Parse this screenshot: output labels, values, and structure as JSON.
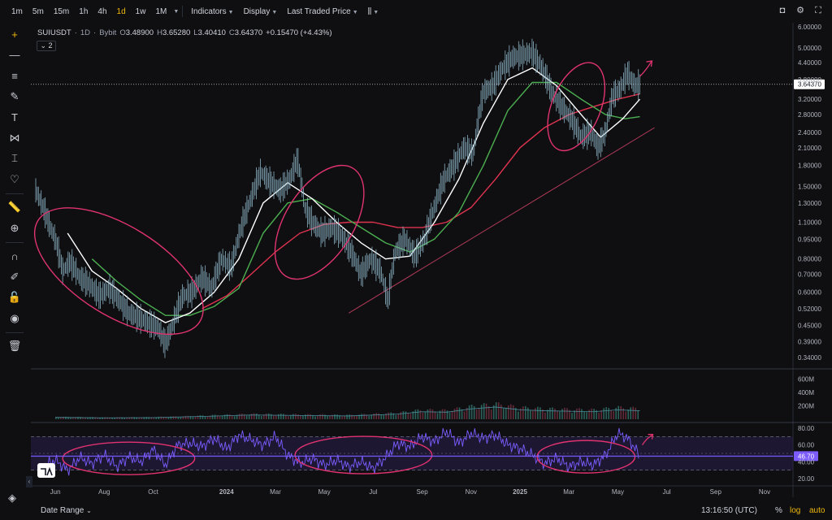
{
  "toolbar": {
    "timeframes": [
      "1m",
      "5m",
      "15m",
      "1h",
      "4h",
      "1d",
      "1w",
      "1M"
    ],
    "active_timeframe": "1d",
    "menus": [
      "Indicators",
      "Display",
      "Last Traded Price"
    ],
    "icons": [
      "camera-icon",
      "settings-icon",
      "fullscreen-icon"
    ]
  },
  "sidebar": {
    "tools": [
      "crosshair-icon",
      "horizontal-line-icon",
      "parallel-channel-icon",
      "brush-icon",
      "text-icon",
      "pattern-icon",
      "measure-icon",
      "heart-icon",
      "ruler-icon",
      "zoom-in-icon",
      "magnet-icon",
      "draw-lock-icon",
      "lock-icon",
      "eye-icon",
      "trash-icon"
    ]
  },
  "legend": {
    "symbol": "SUIUSDT",
    "interval": "1D",
    "exchange": "Bybit",
    "open_label": "O",
    "open": "3.48900",
    "high_label": "H",
    "high": "3.65280",
    "low_label": "L",
    "low": "3.40410",
    "close_label": "C",
    "close": "3.64370",
    "change": "+0.15470 (+4.43%)",
    "indicator_count": "2"
  },
  "colors": {
    "background": "#0f0f12",
    "candle": "#8fb8c9",
    "ma_fast": "#ffffff",
    "ma_mid": "#4caf50",
    "ma_slow": "#e0334f",
    "annotation": "#e0336f",
    "trendline": "#b33a5a",
    "volume": "#3a3f4b",
    "rsi": "#7c5cff",
    "rsi_band": "#2a1f4d",
    "accent": "#f0b90b"
  },
  "chart_data": {
    "type": "line",
    "symbol": "SUIUSDT",
    "interval": "1D",
    "price_scale": "log",
    "price_ticks": [
      "6.00000",
      "5.00000",
      "4.40000",
      "3.80000",
      "3.20000",
      "2.80000",
      "2.40000",
      "2.10000",
      "1.80000",
      "1.50000",
      "1.30000",
      "1.10000",
      "0.95000",
      "0.80000",
      "0.70000",
      "0.60000",
      "0.52000",
      "0.45000",
      "0.39000",
      "0.34000"
    ],
    "price_tick_values": [
      6.0,
      5.0,
      4.4,
      3.8,
      3.2,
      2.8,
      2.4,
      2.1,
      1.8,
      1.5,
      1.3,
      1.1,
      0.95,
      0.8,
      0.7,
      0.6,
      0.52,
      0.45,
      0.39,
      0.34
    ],
    "last_price": "3.64370",
    "last_price_value": 3.6437,
    "time_ticks": [
      "Jun",
      "Aug",
      "Oct",
      "2024",
      "Mar",
      "May",
      "Jul",
      "Sep",
      "Nov",
      "2025",
      "Mar",
      "May",
      "Jul",
      "Sep",
      "Nov"
    ],
    "time_tick_months": [
      1,
      3,
      5,
      8,
      10,
      12,
      14,
      16,
      18,
      20,
      22,
      24,
      26,
      28,
      30
    ],
    "price_series": [
      {
        "m": 0.2,
        "v": 1.45
      },
      {
        "m": 0.5,
        "v": 1.25
      },
      {
        "m": 0.8,
        "v": 1.05
      },
      {
        "m": 1.0,
        "v": 0.95
      },
      {
        "m": 1.3,
        "v": 0.72
      },
      {
        "m": 1.6,
        "v": 0.78
      },
      {
        "m": 2.0,
        "v": 0.68
      },
      {
        "m": 2.4,
        "v": 0.64
      },
      {
        "m": 2.8,
        "v": 0.58
      },
      {
        "m": 3.2,
        "v": 0.62
      },
      {
        "m": 3.6,
        "v": 0.56
      },
      {
        "m": 4.0,
        "v": 0.5
      },
      {
        "m": 4.4,
        "v": 0.48
      },
      {
        "m": 4.8,
        "v": 0.46
      },
      {
        "m": 5.2,
        "v": 0.44
      },
      {
        "m": 5.5,
        "v": 0.38
      },
      {
        "m": 5.8,
        "v": 0.45
      },
      {
        "m": 6.2,
        "v": 0.58
      },
      {
        "m": 6.6,
        "v": 0.6
      },
      {
        "m": 7.0,
        "v": 0.68
      },
      {
        "m": 7.4,
        "v": 0.62
      },
      {
        "m": 7.8,
        "v": 0.8
      },
      {
        "m": 8.2,
        "v": 0.74
      },
      {
        "m": 8.6,
        "v": 1.05
      },
      {
        "m": 9.0,
        "v": 1.35
      },
      {
        "m": 9.4,
        "v": 1.7
      },
      {
        "m": 9.8,
        "v": 1.55
      },
      {
        "m": 10.2,
        "v": 1.45
      },
      {
        "m": 10.6,
        "v": 1.6
      },
      {
        "m": 10.9,
        "v": 1.9
      },
      {
        "m": 11.2,
        "v": 1.25
      },
      {
        "m": 11.5,
        "v": 1.1
      },
      {
        "m": 11.9,
        "v": 1.0
      },
      {
        "m": 12.3,
        "v": 1.05
      },
      {
        "m": 12.7,
        "v": 0.98
      },
      {
        "m": 13.1,
        "v": 0.85
      },
      {
        "m": 13.5,
        "v": 0.7
      },
      {
        "m": 13.9,
        "v": 0.8
      },
      {
        "m": 14.3,
        "v": 0.72
      },
      {
        "m": 14.6,
        "v": 0.55
      },
      {
        "m": 14.9,
        "v": 0.85
      },
      {
        "m": 15.3,
        "v": 0.95
      },
      {
        "m": 15.7,
        "v": 0.82
      },
      {
        "m": 16.1,
        "v": 0.95
      },
      {
        "m": 16.5,
        "v": 1.25
      },
      {
        "m": 16.9,
        "v": 1.6
      },
      {
        "m": 17.3,
        "v": 1.8
      },
      {
        "m": 17.7,
        "v": 2.1
      },
      {
        "m": 18.1,
        "v": 2.0
      },
      {
        "m": 18.5,
        "v": 3.4
      },
      {
        "m": 18.9,
        "v": 3.6
      },
      {
        "m": 19.3,
        "v": 4.2
      },
      {
        "m": 19.7,
        "v": 4.6
      },
      {
        "m": 20.1,
        "v": 4.7
      },
      {
        "m": 20.5,
        "v": 4.8
      },
      {
        "m": 20.9,
        "v": 4.2
      },
      {
        "m": 21.3,
        "v": 3.4
      },
      {
        "m": 21.7,
        "v": 3.0
      },
      {
        "m": 22.1,
        "v": 2.7
      },
      {
        "m": 22.5,
        "v": 2.3
      },
      {
        "m": 22.9,
        "v": 2.4
      },
      {
        "m": 23.2,
        "v": 2.1
      },
      {
        "m": 23.5,
        "v": 2.4
      },
      {
        "m": 23.8,
        "v": 3.3
      },
      {
        "m": 24.1,
        "v": 3.5
      },
      {
        "m": 24.4,
        "v": 4.0
      },
      {
        "m": 24.7,
        "v": 3.6
      },
      {
        "m": 24.9,
        "v": 3.64
      }
    ],
    "ma_fast": [
      {
        "m": 1.5,
        "v": 1.0
      },
      {
        "m": 2.5,
        "v": 0.72
      },
      {
        "m": 3.5,
        "v": 0.62
      },
      {
        "m": 4.5,
        "v": 0.52
      },
      {
        "m": 5.5,
        "v": 0.46
      },
      {
        "m": 6.5,
        "v": 0.5
      },
      {
        "m": 7.5,
        "v": 0.6
      },
      {
        "m": 8.5,
        "v": 0.8
      },
      {
        "m": 9.5,
        "v": 1.3
      },
      {
        "m": 10.5,
        "v": 1.55
      },
      {
        "m": 11.5,
        "v": 1.35
      },
      {
        "m": 12.5,
        "v": 1.1
      },
      {
        "m": 13.5,
        "v": 0.92
      },
      {
        "m": 14.5,
        "v": 0.8
      },
      {
        "m": 15.5,
        "v": 0.82
      },
      {
        "m": 16.5,
        "v": 1.1
      },
      {
        "m": 17.5,
        "v": 1.6
      },
      {
        "m": 18.5,
        "v": 2.6
      },
      {
        "m": 19.5,
        "v": 3.8
      },
      {
        "m": 20.5,
        "v": 4.2
      },
      {
        "m": 21.5,
        "v": 3.6
      },
      {
        "m": 22.5,
        "v": 2.8
      },
      {
        "m": 23.3,
        "v": 2.3
      },
      {
        "m": 24.2,
        "v": 2.7
      },
      {
        "m": 24.9,
        "v": 3.2
      }
    ],
    "ma_mid": [
      {
        "m": 2.5,
        "v": 0.8
      },
      {
        "m": 3.5,
        "v": 0.66
      },
      {
        "m": 4.5,
        "v": 0.56
      },
      {
        "m": 5.5,
        "v": 0.49
      },
      {
        "m": 6.5,
        "v": 0.49
      },
      {
        "m": 7.5,
        "v": 0.53
      },
      {
        "m": 8.5,
        "v": 0.62
      },
      {
        "m": 9.5,
        "v": 1.0
      },
      {
        "m": 10.5,
        "v": 1.3
      },
      {
        "m": 11.5,
        "v": 1.35
      },
      {
        "m": 12.5,
        "v": 1.2
      },
      {
        "m": 13.5,
        "v": 1.05
      },
      {
        "m": 14.5,
        "v": 0.92
      },
      {
        "m": 15.5,
        "v": 0.85
      },
      {
        "m": 16.5,
        "v": 0.95
      },
      {
        "m": 17.5,
        "v": 1.2
      },
      {
        "m": 18.5,
        "v": 1.8
      },
      {
        "m": 19.5,
        "v": 2.9
      },
      {
        "m": 20.5,
        "v": 3.7
      },
      {
        "m": 21.5,
        "v": 3.7
      },
      {
        "m": 22.5,
        "v": 3.2
      },
      {
        "m": 23.5,
        "v": 2.8
      },
      {
        "m": 24.3,
        "v": 2.7
      },
      {
        "m": 24.9,
        "v": 2.75
      }
    ],
    "ma_slow": [
      {
        "m": 7.0,
        "v": 0.52
      },
      {
        "m": 8.0,
        "v": 0.58
      },
      {
        "m": 9.0,
        "v": 0.7
      },
      {
        "m": 10.0,
        "v": 0.85
      },
      {
        "m": 11.0,
        "v": 1.0
      },
      {
        "m": 12.0,
        "v": 1.08
      },
      {
        "m": 13.0,
        "v": 1.1
      },
      {
        "m": 14.0,
        "v": 1.1
      },
      {
        "m": 15.0,
        "v": 1.05
      },
      {
        "m": 16.0,
        "v": 1.05
      },
      {
        "m": 17.0,
        "v": 1.1
      },
      {
        "m": 18.0,
        "v": 1.25
      },
      {
        "m": 19.0,
        "v": 1.6
      },
      {
        "m": 20.0,
        "v": 2.1
      },
      {
        "m": 21.0,
        "v": 2.5
      },
      {
        "m": 22.0,
        "v": 2.8
      },
      {
        "m": 23.0,
        "v": 3.0
      },
      {
        "m": 24.0,
        "v": 3.2
      },
      {
        "m": 24.9,
        "v": 3.35
      }
    ],
    "trendline": [
      {
        "m": 13.0,
        "v": 0.5
      },
      {
        "m": 25.5,
        "v": 2.5
      }
    ],
    "volume": {
      "ticks": [
        "600M",
        "400M",
        "200M"
      ],
      "tick_values": [
        600,
        400,
        200
      ],
      "max": 700,
      "series": [
        {
          "m": 1,
          "v": 40
        },
        {
          "m": 3,
          "v": 30
        },
        {
          "m": 5,
          "v": 35
        },
        {
          "m": 7,
          "v": 60
        },
        {
          "m": 9,
          "v": 90
        },
        {
          "m": 11,
          "v": 80
        },
        {
          "m": 13,
          "v": 70
        },
        {
          "m": 15,
          "v": 110
        },
        {
          "m": 16,
          "v": 160
        },
        {
          "m": 17,
          "v": 150
        },
        {
          "m": 18,
          "v": 220
        },
        {
          "m": 19,
          "v": 260
        },
        {
          "m": 20,
          "v": 200
        },
        {
          "m": 21,
          "v": 180
        },
        {
          "m": 22,
          "v": 170
        },
        {
          "m": 23,
          "v": 160
        },
        {
          "m": 24,
          "v": 200
        },
        {
          "m": 24.9,
          "v": 180
        }
      ]
    },
    "rsi": {
      "ticks": [
        "80.00",
        "60.00",
        "40.00",
        "20.00"
      ],
      "tick_values": [
        80,
        60,
        40,
        20
      ],
      "band_upper": 70,
      "band_lower": 30,
      "mid": 50,
      "current": "46.70",
      "current_value": 46.7,
      "series": [
        {
          "m": 0.5,
          "v": 35
        },
        {
          "m": 1.0,
          "v": 42
        },
        {
          "m": 1.5,
          "v": 30
        },
        {
          "m": 2.0,
          "v": 45
        },
        {
          "m": 2.5,
          "v": 38
        },
        {
          "m": 3.0,
          "v": 48
        },
        {
          "m": 3.5,
          "v": 34
        },
        {
          "m": 4.0,
          "v": 46
        },
        {
          "m": 4.5,
          "v": 40
        },
        {
          "m": 5.0,
          "v": 55
        },
        {
          "m": 5.5,
          "v": 36
        },
        {
          "m": 6.0,
          "v": 60
        },
        {
          "m": 6.5,
          "v": 62
        },
        {
          "m": 7.0,
          "v": 58
        },
        {
          "m": 7.5,
          "v": 68
        },
        {
          "m": 8.0,
          "v": 55
        },
        {
          "m": 8.5,
          "v": 72
        },
        {
          "m": 9.0,
          "v": 66
        },
        {
          "m": 9.5,
          "v": 60
        },
        {
          "m": 10.0,
          "v": 70
        },
        {
          "m": 10.5,
          "v": 48
        },
        {
          "m": 11.0,
          "v": 38
        },
        {
          "m": 11.5,
          "v": 44
        },
        {
          "m": 12.0,
          "v": 36
        },
        {
          "m": 12.5,
          "v": 42
        },
        {
          "m": 13.0,
          "v": 34
        },
        {
          "m": 13.5,
          "v": 40
        },
        {
          "m": 14.0,
          "v": 32
        },
        {
          "m": 14.5,
          "v": 45
        },
        {
          "m": 15.0,
          "v": 62
        },
        {
          "m": 15.5,
          "v": 58
        },
        {
          "m": 16.0,
          "v": 70
        },
        {
          "m": 16.5,
          "v": 64
        },
        {
          "m": 17.0,
          "v": 76
        },
        {
          "m": 17.5,
          "v": 62
        },
        {
          "m": 18.0,
          "v": 74
        },
        {
          "m": 18.5,
          "v": 68
        },
        {
          "m": 19.0,
          "v": 72
        },
        {
          "m": 19.5,
          "v": 60
        },
        {
          "m": 20.0,
          "v": 56
        },
        {
          "m": 20.5,
          "v": 48
        },
        {
          "m": 21.0,
          "v": 38
        },
        {
          "m": 21.5,
          "v": 44
        },
        {
          "m": 22.0,
          "v": 34
        },
        {
          "m": 22.5,
          "v": 40
        },
        {
          "m": 23.0,
          "v": 36
        },
        {
          "m": 23.5,
          "v": 48
        },
        {
          "m": 24.0,
          "v": 74
        },
        {
          "m": 24.4,
          "v": 68
        },
        {
          "m": 24.7,
          "v": 56
        },
        {
          "m": 24.9,
          "v": 46.7
        }
      ]
    }
  },
  "footer": {
    "date_range": "Date Range",
    "clock": "13:16:50 (UTC)",
    "percent": "%",
    "log": "log",
    "auto": "auto"
  }
}
